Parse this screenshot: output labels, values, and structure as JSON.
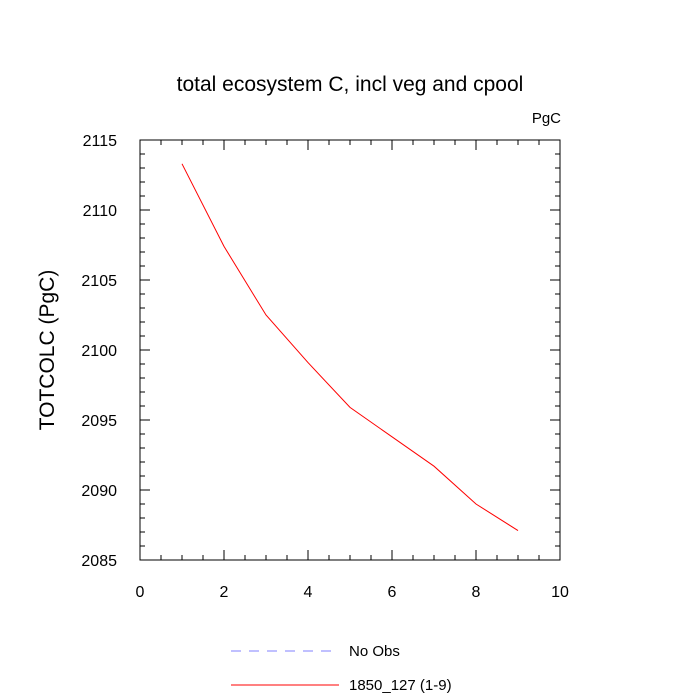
{
  "chart_data": {
    "type": "line",
    "title": "total ecosystem C, incl veg and cpool",
    "units_label": "PgC",
    "ylabel": "TOTCOLC  (PgC)",
    "xlabel": "",
    "xlim": [
      0,
      10
    ],
    "ylim": [
      2085,
      2115
    ],
    "x_ticks": [
      "0",
      "2",
      "4",
      "6",
      "8",
      "10"
    ],
    "y_ticks": [
      "2085",
      "2090",
      "2095",
      "2100",
      "2105",
      "2110",
      "2115"
    ],
    "grid": false,
    "legend_position": "bottom",
    "series": [
      {
        "name": "1850_127 (1-9)",
        "color": "#ff0000",
        "style": "solid",
        "x": [
          1,
          2,
          3,
          4,
          5,
          6,
          7,
          8,
          9
        ],
        "y": [
          2113.3,
          2107.4,
          2102.5,
          2099.1,
          2095.9,
          2093.8,
          2091.7,
          2089.0,
          2087.1
        ]
      },
      {
        "name": "No Obs",
        "color": "#8080ff",
        "style": "dashed",
        "x": [],
        "y": []
      }
    ]
  }
}
